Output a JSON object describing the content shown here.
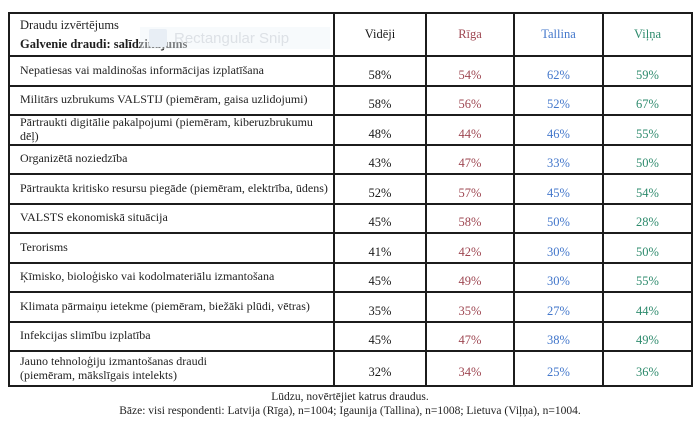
{
  "watermark": {
    "label": "Rectangular Snip"
  },
  "table": {
    "header": {
      "title_line1": "Draudu izvērtējums",
      "title_line2": "Galvenie draudi: salīdzinājums",
      "columns": [
        {
          "label": "Vidēji",
          "color": "#1a1a1a"
        },
        {
          "label": "Rīga",
          "color": "#9e4752"
        },
        {
          "label": "Tallina",
          "color": "#4377cb"
        },
        {
          "label": "Viļņa",
          "color": "#2e8b6d"
        }
      ]
    },
    "rows": [
      {
        "label": "Nepatiesas vai maldinošas informācijas izplatīšana",
        "values": [
          "58%",
          "54%",
          "62%",
          "59%"
        ]
      },
      {
        "label": "Militārs uzbrukums VALSTIJ (piemēram, gaisa uzlidojumi)",
        "values": [
          "58%",
          "56%",
          "52%",
          "67%"
        ]
      },
      {
        "label": "Pārtraukti digitālie pakalpojumi (piemēram, kiberuzbrukumu dēļ)",
        "values": [
          "48%",
          "44%",
          "46%",
          "55%"
        ]
      },
      {
        "label": "Organizētā noziedzība",
        "values": [
          "43%",
          "47%",
          "33%",
          "50%"
        ]
      },
      {
        "label": "Pārtraukta kritisko resursu piegāde (piemēram, elektrība, ūdens)",
        "values": [
          "52%",
          "57%",
          "45%",
          "54%"
        ]
      },
      {
        "label": "VALSTS ekonomiskā situācija",
        "values": [
          "45%",
          "58%",
          "50%",
          "28%"
        ]
      },
      {
        "label": "Terorisms",
        "values": [
          "41%",
          "42%",
          "30%",
          "50%"
        ]
      },
      {
        "label": "Ķīmisko, bioloģisko vai kodolmateriālu izmantošana",
        "values": [
          "45%",
          "49%",
          "30%",
          "55%"
        ]
      },
      {
        "label": "Klimata pārmaiņu ietekme (piemēram, biežāki plūdi, vētras)",
        "values": [
          "35%",
          "35%",
          "27%",
          "44%"
        ]
      },
      {
        "label": "Infekcijas slimību izplatība",
        "values": [
          "45%",
          "47%",
          "38%",
          "49%"
        ]
      },
      {
        "label": "Jauno tehnoloģiju izmantošanas draudi\n(piemēram, mākslīgais intelekts)",
        "values": [
          "32%",
          "34%",
          "25%",
          "36%"
        ]
      }
    ]
  },
  "footer": {
    "line1": "Lūdzu, novērtējiet katrus draudus.",
    "line2": "Bāze: visi respondenti: Latvija (Rīga), n=1004; Igaunija (Tallina), n=1008; Lietuva (Viļņa), n=1004."
  },
  "chart_data": {
    "type": "table",
    "title": "Draudu izvērtējums — Galvenie draudi: salīdzinājums",
    "categories": [
      "Nepatiesas vai maldinošas informācijas izplatīšana",
      "Militārs uzbrukums VALSTIJ (piemēram, gaisa uzlidojumi)",
      "Pārtraukti digitālie pakalpojumi (piemēram, kiberuzbrukumu dēļ)",
      "Organizētā noziedzība",
      "Pārtraukta kritisko resursu piegāde (piemēram, elektrība, ūdens)",
      "VALSTS ekonomiskā situācija",
      "Terorisms",
      "Ķīmisko, bioloģisko vai kodolmateriālu izmantošana",
      "Klimata pārmaiņu ietekme (piemēram, biežāki plūdi, vētras)",
      "Infekcijas slimību izplatība",
      "Jauno tehnoloģiju izmantošanas draudi (piemēram, mākslīgais intelekts)"
    ],
    "series": [
      {
        "name": "Vidēji",
        "values": [
          58,
          58,
          48,
          43,
          52,
          45,
          41,
          45,
          35,
          45,
          32
        ]
      },
      {
        "name": "Rīga",
        "values": [
          54,
          56,
          44,
          47,
          57,
          58,
          42,
          49,
          35,
          47,
          34
        ]
      },
      {
        "name": "Tallina",
        "values": [
          62,
          52,
          46,
          33,
          45,
          50,
          30,
          30,
          27,
          38,
          25
        ]
      },
      {
        "name": "Viļņa",
        "values": [
          59,
          67,
          55,
          50,
          54,
          28,
          50,
          55,
          44,
          49,
          36
        ]
      }
    ],
    "unit": "%"
  }
}
